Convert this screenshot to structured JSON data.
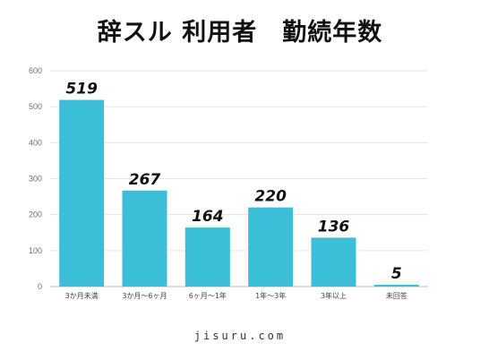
{
  "title": "辞スル 利用者　勤続年数",
  "footer": "jisuru.com",
  "chart_data": {
    "type": "bar",
    "categories": [
      "3か月未満",
      "3か月～6ヶ月",
      "6ヶ月～1年",
      "1年～3年",
      "3年以上",
      "未回答"
    ],
    "values": [
      519,
      267,
      164,
      220,
      136,
      5
    ],
    "ylim": [
      0,
      600
    ],
    "yticks": [
      0,
      100,
      200,
      300,
      400,
      500,
      600
    ],
    "grid": true,
    "legend": "none",
    "bar_color": "#3bbfd9"
  }
}
